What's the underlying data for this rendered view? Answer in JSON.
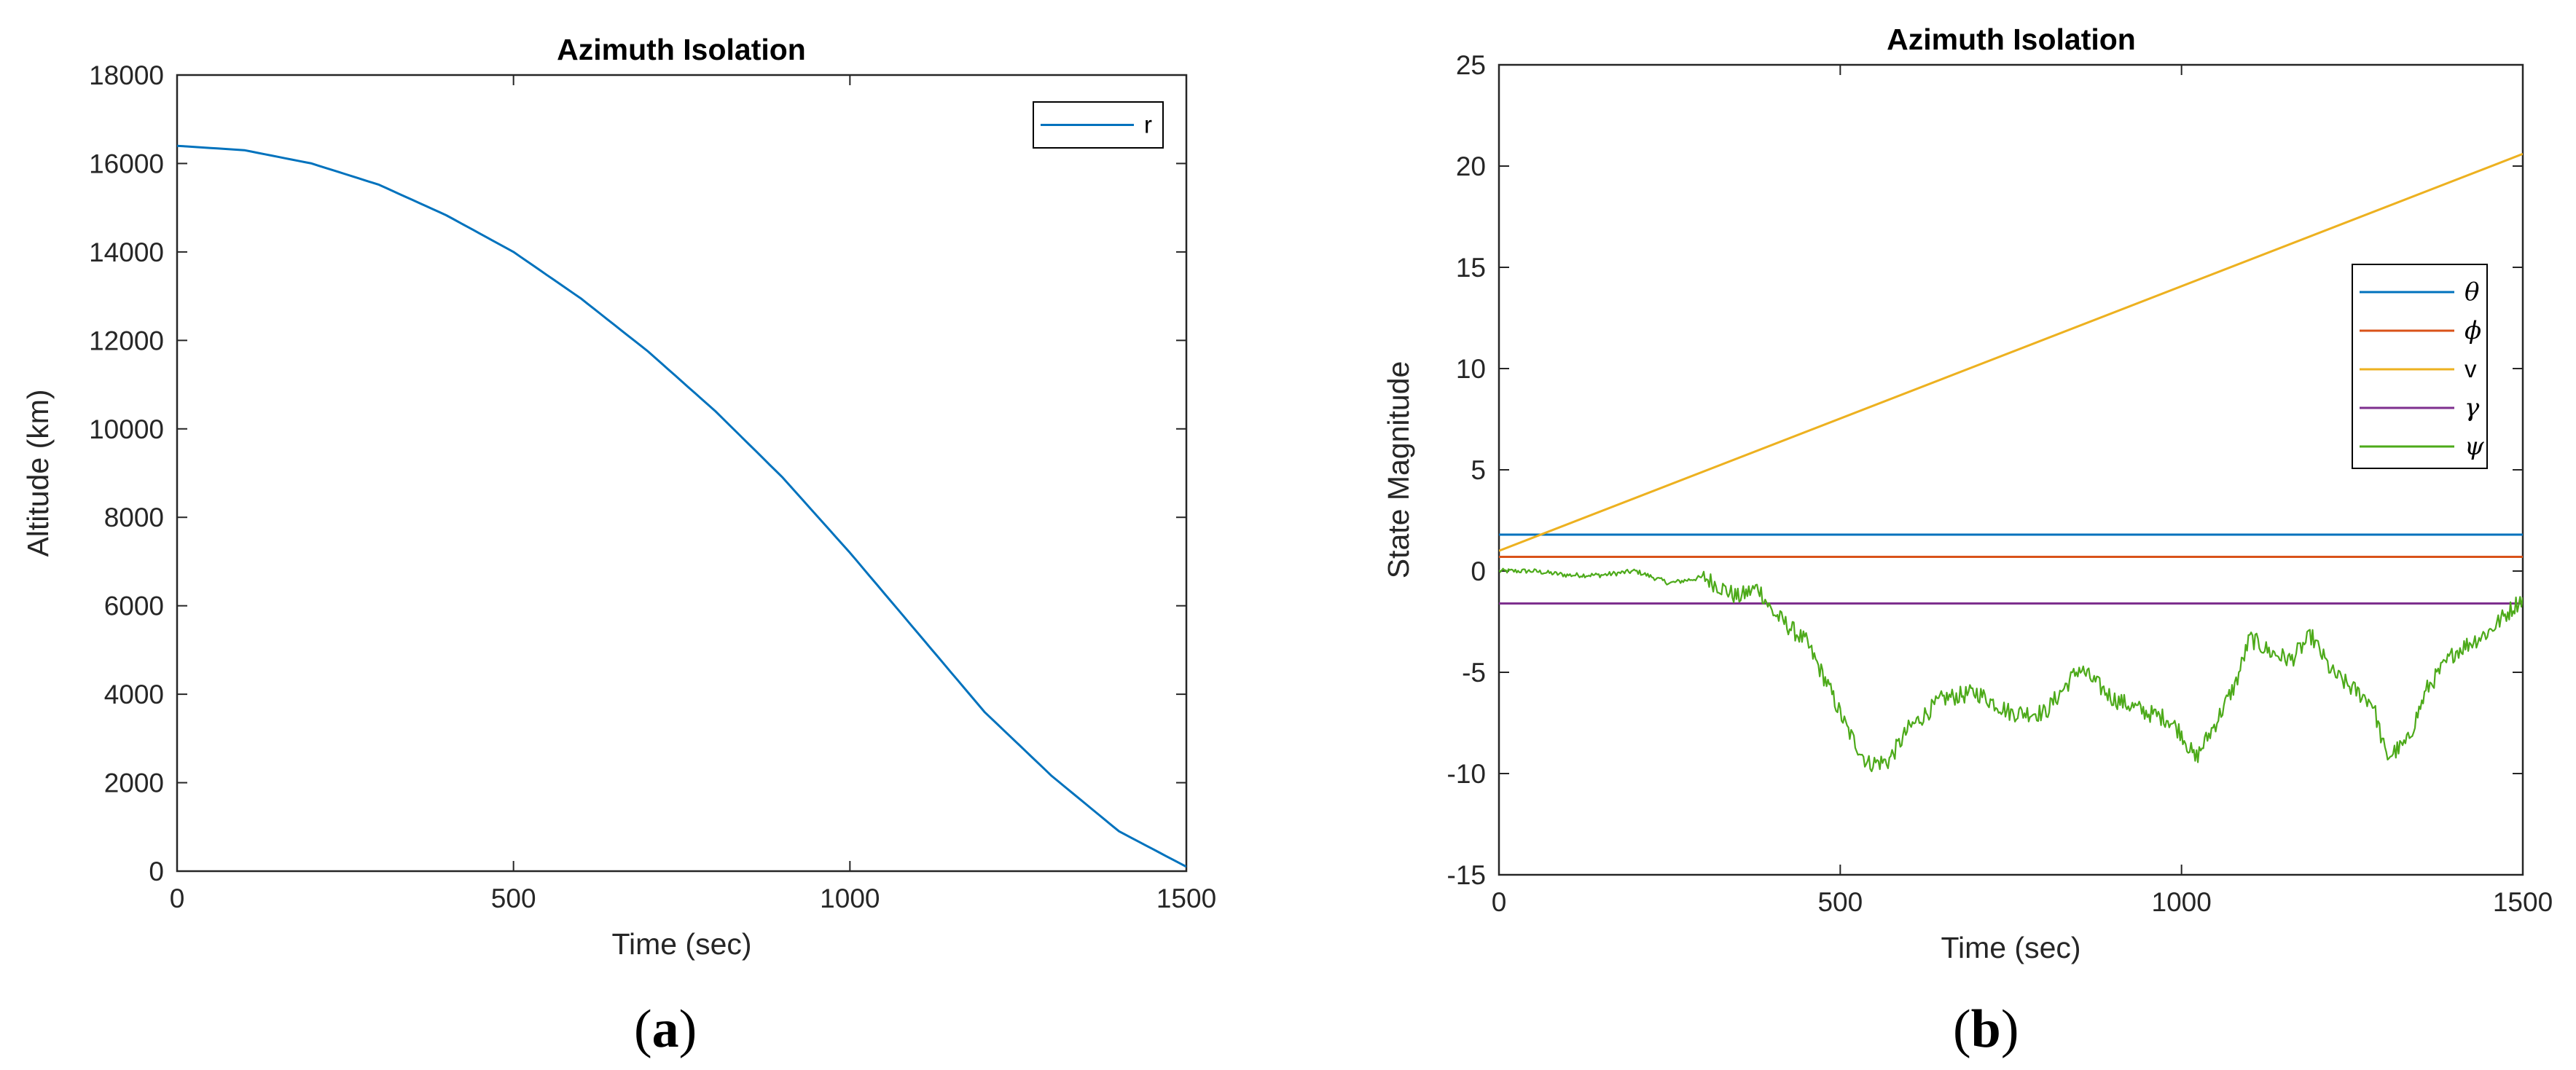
{
  "chart_data": [
    {
      "type": "line",
      "title": "Azimuth Isolation",
      "xlabel": "Time (sec)",
      "ylabel": "Altitude (km)",
      "xlim": [
        0,
        1500
      ],
      "ylim": [
        0,
        18000
      ],
      "xticks": [
        0,
        500,
        1000,
        1500
      ],
      "yticks": [
        0,
        2000,
        4000,
        6000,
        8000,
        10000,
        12000,
        14000,
        16000,
        18000
      ],
      "grid": false,
      "legend_position": "top-right",
      "series": [
        {
          "name": "r",
          "color": "#0072BD",
          "x": [
            0,
            100,
            200,
            300,
            400,
            500,
            600,
            700,
            800,
            900,
            1000,
            1100,
            1200,
            1300,
            1400,
            1500
          ],
          "y": [
            16400,
            16300,
            16000,
            15520,
            14830,
            14000,
            12950,
            11750,
            10400,
            8900,
            7200,
            5400,
            3600,
            2150,
            900,
            100
          ]
        }
      ],
      "panel_label": {
        "open": "(",
        "letter": "a",
        "close": ")"
      }
    },
    {
      "type": "line",
      "title": "Azimuth Isolation",
      "xlabel": "Time (sec)",
      "ylabel": "State Magnitude",
      "xlim": [
        0,
        1500
      ],
      "ylim": [
        -15,
        25
      ],
      "xticks": [
        0,
        500,
        1000,
        1500
      ],
      "yticks": [
        -15,
        -10,
        -5,
        0,
        5,
        10,
        15,
        20,
        25
      ],
      "grid": false,
      "legend_position": "right",
      "series": [
        {
          "name": "θ",
          "color": "#0072BD",
          "x": [
            0,
            1500
          ],
          "y": [
            1.8,
            1.8
          ]
        },
        {
          "name": "ϕ",
          "color": "#D95319",
          "x": [
            0,
            1500
          ],
          "y": [
            0.7,
            0.7
          ]
        },
        {
          "name": "v",
          "color": "#EDB120",
          "x": [
            0,
            1500
          ],
          "y": [
            1.0,
            20.6
          ]
        },
        {
          "name": "γ",
          "color": "#7E2F8E",
          "x": [
            0,
            1500
          ],
          "y": [
            -1.6,
            -1.6
          ]
        },
        {
          "name": "ψ",
          "color": "#4DAA1A",
          "x": [
            0,
            50,
            100,
            150,
            200,
            250,
            300,
            350,
            380,
            400,
            450,
            480,
            510,
            540,
            570,
            600,
            650,
            700,
            750,
            800,
            850,
            900,
            950,
            980,
            1000,
            1020,
            1050,
            1080,
            1100,
            1130,
            1160,
            1190,
            1220,
            1250,
            1280,
            1300,
            1330,
            1360,
            1400,
            1450,
            1500
          ],
          "y": [
            0.0,
            0.0,
            -0.2,
            -0.2,
            0.0,
            -0.6,
            -0.3,
            -1.3,
            -0.8,
            -2.0,
            -3.5,
            -5.5,
            -7.8,
            -9.5,
            -9.4,
            -7.8,
            -6.3,
            -6.0,
            -7.0,
            -7.0,
            -4.8,
            -6.3,
            -7.0,
            -7.3,
            -8.0,
            -9.3,
            -7.5,
            -5.5,
            -3.3,
            -4.0,
            -4.4,
            -3.2,
            -5.0,
            -5.8,
            -6.5,
            -9.2,
            -8.5,
            -5.8,
            -4.0,
            -3.0,
            -1.3
          ]
        }
      ],
      "panel_label": {
        "open": "(",
        "letter": "b",
        "close": ")"
      }
    }
  ]
}
